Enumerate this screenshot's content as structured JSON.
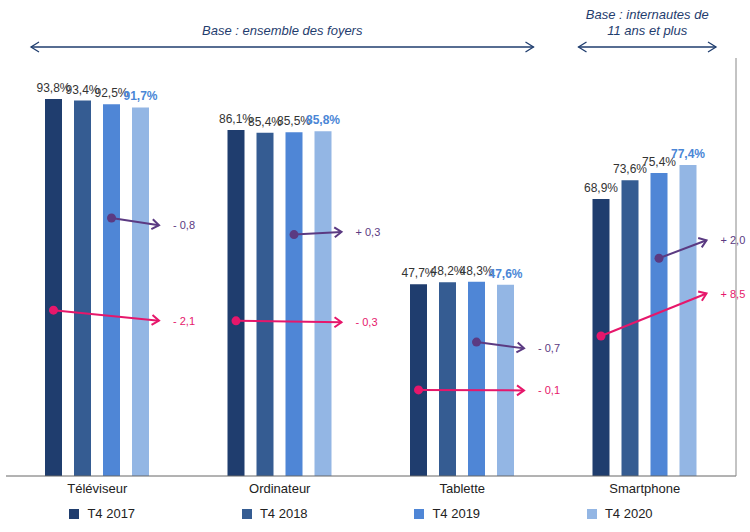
{
  "chart_data": {
    "type": "bar",
    "categories": [
      "Téléviseur",
      "Ordinateur",
      "Tablette",
      "Smartphone"
    ],
    "series": [
      {
        "name": "T4 2017",
        "color": "#1f3d6e",
        "values": [
          93.8,
          86.1,
          47.7,
          68.9
        ],
        "value_labels": [
          "93,8%",
          "86,1%",
          "47,7%",
          "68,9%"
        ]
      },
      {
        "name": "T4 2018",
        "color": "#355c92",
        "values": [
          93.4,
          85.4,
          48.2,
          73.6
        ],
        "value_labels": [
          "93,4%",
          "85,4%",
          "48,2%",
          "73,6%"
        ]
      },
      {
        "name": "T4 2019",
        "color": "#4f86d6",
        "values": [
          92.5,
          85.5,
          48.3,
          75.4
        ],
        "value_labels": [
          "92,5%",
          "85,5%",
          "48,3%",
          "75,4%"
        ]
      },
      {
        "name": "T4 2020",
        "color": "#93b6e4",
        "values": [
          91.7,
          85.8,
          47.6,
          77.4
        ],
        "value_labels": [
          "91,7%",
          "85,8%",
          "47,6%",
          "77,4%"
        ]
      }
    ],
    "ylim": [
      0,
      104
    ],
    "yticks": [],
    "grid": false,
    "legend": "bottom",
    "data_labels": true,
    "tick_labels": "x",
    "changes": [
      {
        "from": "T4 2019",
        "color": "#5b3a82",
        "values": [
          -0.8,
          0.3,
          -0.7,
          2.0
        ],
        "value_labels": [
          "- 0,8",
          "+ 0,3",
          "- 0,7",
          "+ 2,0"
        ]
      },
      {
        "from": "T4 2017",
        "color": "#e6176b",
        "values": [
          -2.1,
          -0.3,
          -0.1,
          8.5
        ],
        "value_labels": [
          "- 2,1",
          "- 0,3",
          "- 0,1",
          "+ 8,5"
        ]
      }
    ],
    "bases": [
      {
        "text": [
          "Base : ensemble des foyers"
        ],
        "categories": [
          "Téléviseur",
          "Ordinateur",
          "Tablette"
        ]
      },
      {
        "text": [
          "Base : internautes de",
          "11 ans et plus"
        ],
        "categories": [
          "Smartphone"
        ]
      }
    ]
  }
}
